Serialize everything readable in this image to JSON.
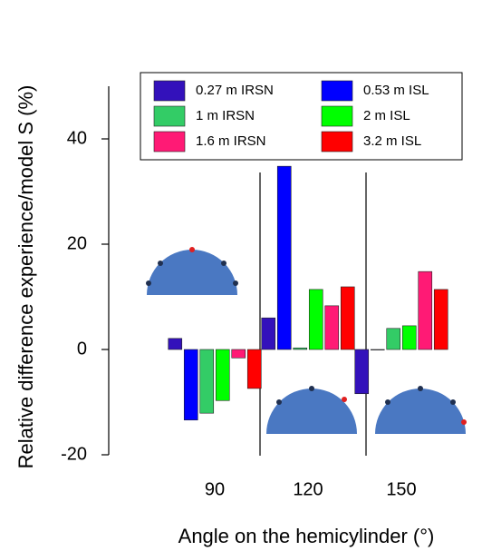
{
  "chart_data": {
    "type": "bar",
    "x_label": "Angle on the hemicylinder (°)",
    "y_label": "Relative difference experience/model S (%)",
    "categories": [
      "90",
      "120",
      "150"
    ],
    "series": [
      {
        "name": "0.27 m IRSN",
        "color": "#3311bb",
        "values": [
          2.1,
          6.0,
          -8.4
        ]
      },
      {
        "name": "0.53 m ISL",
        "color": "#0000ff",
        "values": [
          -13.4,
          34.8,
          0
        ]
      },
      {
        "name": "1 m IRSN",
        "color": "#33cc66",
        "values": [
          -12.1,
          0.3,
          4.0
        ]
      },
      {
        "name": "2 m ISL",
        "color": "#00ff00",
        "values": [
          -9.7,
          11.4,
          4.5
        ]
      },
      {
        "name": "1.6 m IRSN",
        "color": "#ff1a75",
        "values": [
          -1.6,
          8.3,
          14.8
        ]
      },
      {
        "name": "3.2 m ISL",
        "color": "#ff0000",
        "values": [
          -7.4,
          11.9,
          11.4
        ]
      }
    ],
    "ylim": [
      -20,
      50
    ],
    "yticks": [
      -20,
      0,
      20,
      40
    ]
  }
}
